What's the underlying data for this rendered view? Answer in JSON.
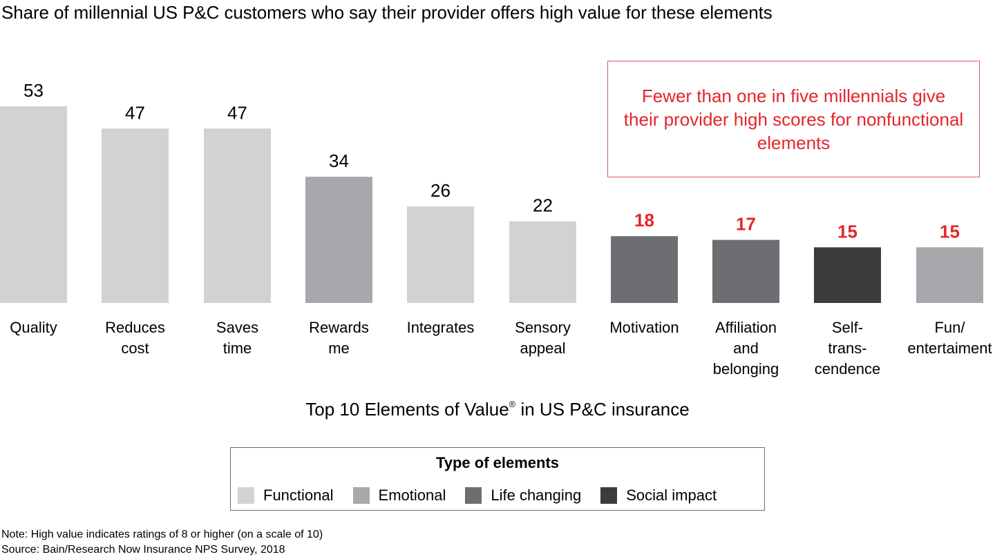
{
  "title": "Share of millennial US P&C customers who say their provider offers high value for these elements",
  "callout": "Fewer than one in five millennials give their provider high scores for nonfunctional elements",
  "subtitle": {
    "text": "Top 10 Elements of Value",
    "sup": "®",
    "suffix": " in US P&C insurance"
  },
  "legend": {
    "title": "Type of elements",
    "items": [
      {
        "key": "functional",
        "label": "Functional",
        "color": "#D1D2D4"
      },
      {
        "key": "emotional",
        "label": "Emotional",
        "color": "#A7A8AB"
      },
      {
        "key": "life_changing",
        "label": "Life changing",
        "color": "#6D6E71"
      },
      {
        "key": "social_impact",
        "label": "Social impact",
        "color": "#3B3B3D"
      }
    ]
  },
  "notes": {
    "note": "Note: High value indicates ratings of 8 or higher (on a scale of 10)",
    "source": "Source: Bain/Research Now Insurance NPS Survey, 2018"
  },
  "colors": {
    "highlight_red": "#E5252A",
    "callout_border": "#E3585C",
    "value_label_default": "#000000"
  },
  "chart_data": {
    "type": "bar",
    "title": "Share of millennial US P&C customers who say their provider offers high value for these elements",
    "xlabel": "Top 10 Elements of Value® in US P&C insurance",
    "ylabel": "",
    "ylim": [
      0,
      53
    ],
    "grid": false,
    "legend_position": "bottom-center",
    "categories": [
      "Quality",
      "Reduces\ncost",
      "Saves\ntime",
      "Rewards\nme",
      "Integrates",
      "Sensory\nappeal",
      "Motivation",
      "Affiliation\nand\nbelonging",
      "Self-\ntrans-\ncendence",
      "Fun/\nentertaiment"
    ],
    "values": [
      53,
      47,
      47,
      34,
      26,
      22,
      18,
      17,
      15,
      15
    ],
    "types": [
      "functional",
      "functional",
      "functional",
      "emotional",
      "functional",
      "functional",
      "life_changing",
      "life_changing",
      "social_impact",
      "emotional"
    ],
    "highlighted": [
      false,
      false,
      false,
      false,
      false,
      false,
      true,
      true,
      true,
      true
    ],
    "value_labels": [
      "53",
      "47",
      "47",
      "34",
      "26",
      "22",
      "18",
      "17",
      "15",
      "15"
    ]
  }
}
